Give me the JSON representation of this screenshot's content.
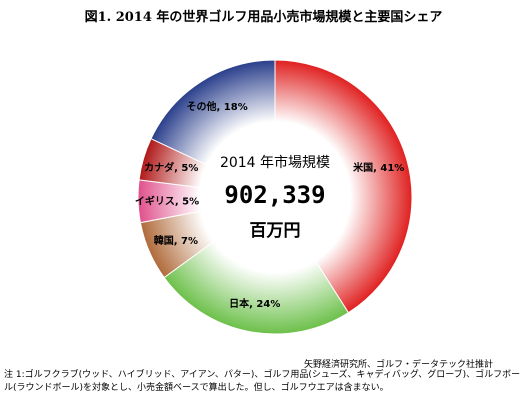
{
  "title": "図1. 2014 年の世界ゴルフ用品小売市場規模と主要国シェア",
  "center": {
    "caption": "2014 年市場規模",
    "value": "902,339",
    "unit": "百万円"
  },
  "source": "矢野経済研究所、ゴルフ・データテック社推計",
  "note": "注 1:ゴルフクラブ(ウッド、ハイブリッド、アイアン、パター)、ゴルフ用品(シューズ、キャディバッグ、グローブ)、ゴルフボール(ラウンドボール)を対象とし、小売金額ベースで算出した。但し、ゴルフウエアは含まない。",
  "chart_data": {
    "type": "pie",
    "title": "図1. 2014 年の世界ゴルフ用品小売市場規模と主要国シェア",
    "donut": true,
    "slices": [
      {
        "label": "米国, 41%",
        "value": 41,
        "color": "#e02020"
      },
      {
        "label": "日本, 24%",
        "value": 24,
        "color": "#6cc04a"
      },
      {
        "label": "韓国, 7%",
        "value": 7,
        "color": "#b06a3a"
      },
      {
        "label": "イギリス, 5%",
        "value": 5,
        "color": "#e0508c"
      },
      {
        "label": "カナダ, 5%",
        "value": 5,
        "color": "#b01818"
      },
      {
        "label": "その他, 18%",
        "value": 18,
        "color": "#2a3f8c"
      }
    ]
  }
}
